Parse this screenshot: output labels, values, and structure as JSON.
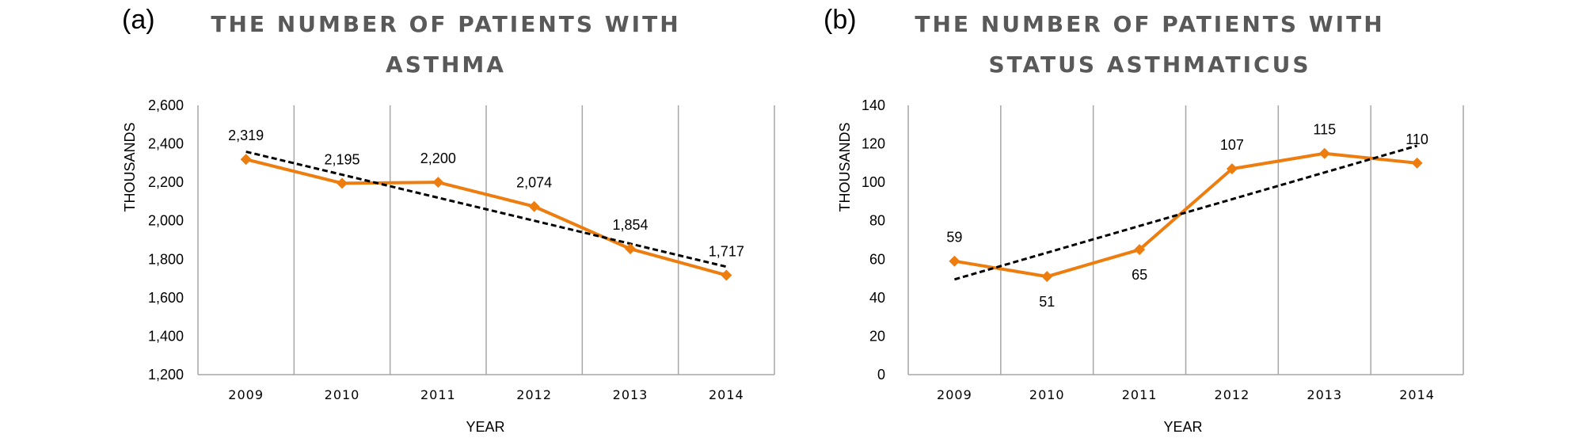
{
  "chart_data": [
    {
      "panel": "(a)",
      "type": "line",
      "title_lines": [
        "THE NUMBER OF PATIENTS WITH",
        "ASTHMA"
      ],
      "xlabel": "YEAR",
      "ylabel": "THOUSANDS",
      "categories": [
        "2009",
        "2010",
        "2011",
        "2012",
        "2013",
        "2014"
      ],
      "values": [
        2319,
        2195,
        2200,
        2074,
        1854,
        1717
      ],
      "data_labels": [
        "2,319",
        "2,195",
        "2,200",
        "2,074",
        "1,854",
        "1,717"
      ],
      "ylim": [
        1200,
        2600
      ],
      "yticks": [
        1200,
        1400,
        1600,
        1800,
        2000,
        2200,
        2400,
        2600
      ],
      "ytick_labels": [
        "1,200",
        "1,400",
        "1,600",
        "1,800",
        "2,000",
        "2,200",
        "2,400",
        "2,600"
      ],
      "trendline": {
        "style": "dashed",
        "start": 2359,
        "end": 1761
      },
      "series_color": "#ED7D0F",
      "trend_color": "#000000",
      "label_positions": [
        "above",
        "above",
        "above",
        "above",
        "above",
        "above"
      ]
    },
    {
      "panel": "(b)",
      "type": "line",
      "title_lines": [
        "THE NUMBER OF PATIENTS WITH",
        "STATUS ASTHMATICUS"
      ],
      "xlabel": "YEAR",
      "ylabel": "THOUSANDS",
      "categories": [
        "2009",
        "2010",
        "2011",
        "2012",
        "2013",
        "2014"
      ],
      "values": [
        59,
        51,
        65,
        107,
        115,
        110
      ],
      "data_labels": [
        "59",
        "51",
        "65",
        "107",
        "115",
        "110"
      ],
      "ylim": [
        0,
        140
      ],
      "yticks": [
        0,
        20,
        40,
        60,
        80,
        100,
        120,
        140
      ],
      "ytick_labels": [
        "0",
        "20",
        "40",
        "60",
        "80",
        "100",
        "120",
        "140"
      ],
      "trendline": {
        "style": "dashed",
        "start": 49.5,
        "end": 119
      },
      "series_color": "#ED7D0F",
      "trend_color": "#000000",
      "label_positions": [
        "above",
        "below",
        "below",
        "above",
        "above",
        "above"
      ]
    }
  ]
}
